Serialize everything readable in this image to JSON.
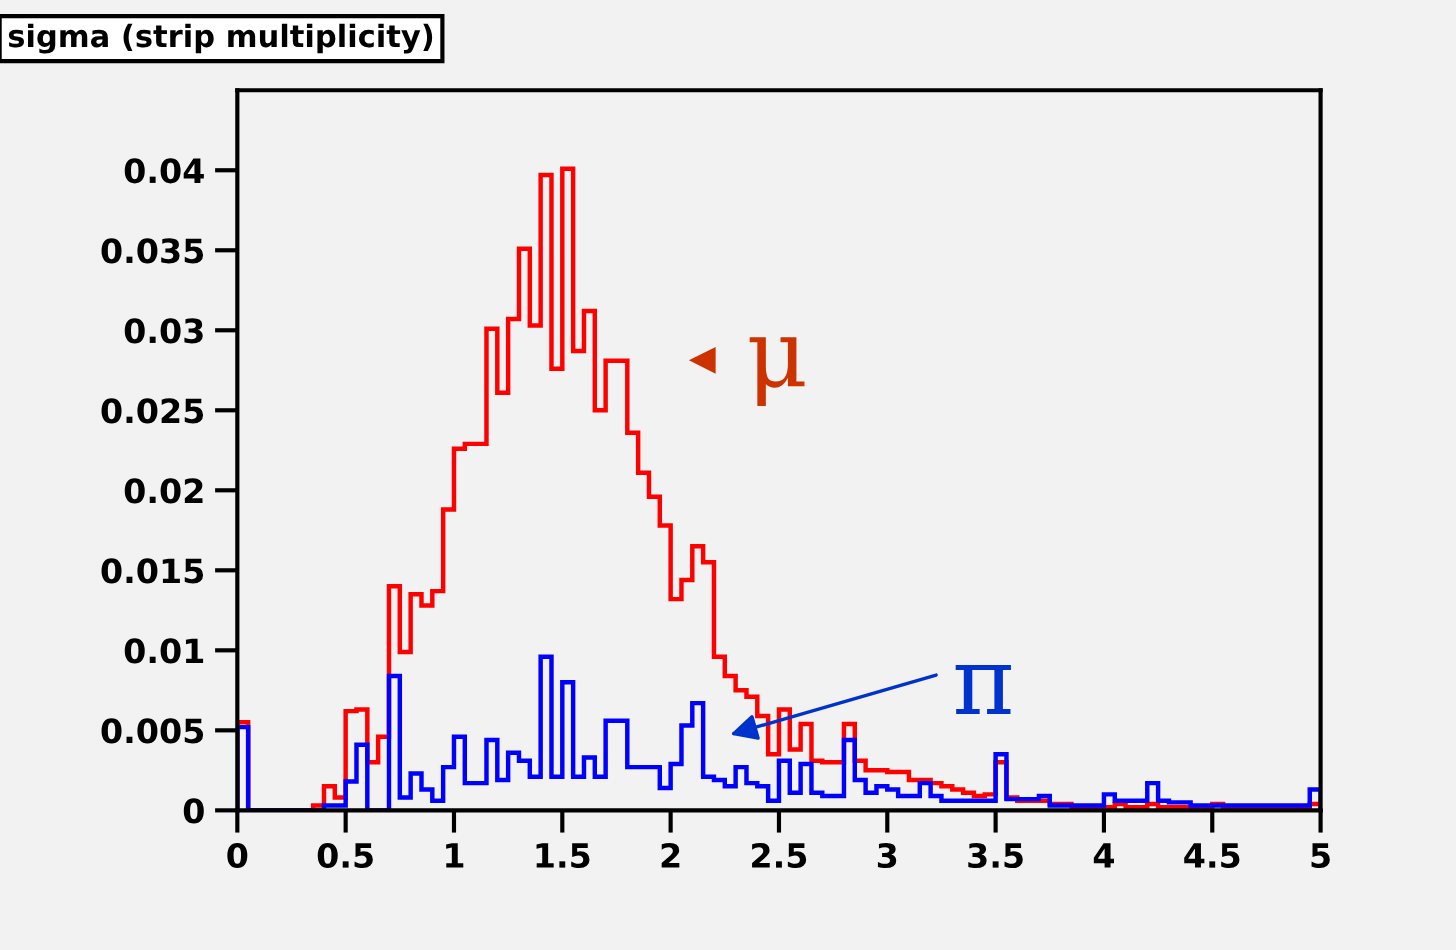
{
  "chart_data": {
    "type": "histogram",
    "title": "sigma (strip multiplicity)",
    "bins": [
      0,
      0.05,
      0.1,
      0.15,
      0.2,
      0.25,
      0.3,
      0.35,
      0.4,
      0.45,
      0.5,
      0.55,
      0.6,
      0.65,
      0.7,
      0.75,
      0.8,
      0.85,
      0.9,
      0.95,
      1,
      1.05,
      1.1,
      1.15,
      1.2,
      1.25,
      1.3,
      1.35,
      1.4,
      1.45,
      1.5,
      1.55,
      1.6,
      1.65,
      1.7,
      1.75,
      1.8,
      1.85,
      1.9,
      1.95,
      2,
      2.05,
      2.1,
      2.15,
      2.2,
      2.25,
      2.3,
      2.35,
      2.4,
      2.45,
      2.5,
      2.55,
      2.6,
      2.65,
      2.7,
      2.75,
      2.8,
      2.85,
      2.9,
      2.95,
      3,
      3.05,
      3.1,
      3.15,
      3.2,
      3.25,
      3.3,
      3.35,
      3.4,
      3.45,
      3.5,
      3.55,
      3.6,
      3.65,
      3.7,
      3.75,
      3.8,
      3.85,
      3.9,
      3.95,
      4,
      4.05,
      4.1,
      4.15,
      4.2,
      4.25,
      4.3,
      4.35,
      4.4,
      4.45,
      4.5,
      4.55,
      4.6,
      4.65,
      4.7,
      4.75,
      4.8,
      4.85,
      4.9,
      4.95,
      5
    ],
    "series": [
      {
        "color": "#ff0000",
        "values": [
          0.0055,
          0,
          0,
          0,
          0,
          0,
          0,
          0.0003,
          0.0015,
          0.0008,
          0.0062,
          0.0063,
          0.003,
          0.0046,
          0.014,
          0.0099,
          0.0135,
          0.0128,
          0.0137,
          0.0188,
          0.0226,
          0.0229,
          0.0229,
          0.0301,
          0.0261,
          0.0307,
          0.0351,
          0.0303,
          0.0397,
          0.0276,
          0.0401,
          0.0287,
          0.0312,
          0.025,
          0.0281,
          0.0281,
          0.0236,
          0.0211,
          0.0196,
          0.0178,
          0.0132,
          0.0144,
          0.0165,
          0.0155,
          0.0096,
          0.0084,
          0.0075,
          0.0071,
          0.0059,
          0.0035,
          0.0063,
          0.0038,
          0.0054,
          0.0031,
          0.003,
          0.003,
          0.0054,
          0.0031,
          0.0025,
          0.0025,
          0.0024,
          0.0024,
          0.0019,
          0.0019,
          0.0017,
          0.0015,
          0.0013,
          0.0011,
          0.0009,
          0.001,
          0.003,
          0.0008,
          0.0006,
          0.0006,
          0.0006,
          0.0004,
          0.0004,
          0.0002,
          0.0002,
          0.0002,
          0.0002,
          0.0004,
          0.0002,
          0.0002,
          0.0004,
          0.0002,
          0.0002,
          0.0002,
          0.0002,
          0.0002,
          0.0004,
          0.0002,
          0.0002,
          0.0002,
          0.0002,
          0.0002,
          0.0002,
          0.0002,
          0.0002,
          0.0004
        ]
      },
      {
        "color": "#0000ff",
        "values": [
          0.0052,
          0,
          0,
          0,
          0,
          0,
          0,
          0,
          0.0003,
          0.0003,
          0.0018,
          0.0041,
          0,
          0,
          0.0084,
          0.0008,
          0.0023,
          0.0013,
          0.0006,
          0.0027,
          0.0046,
          0.0017,
          0.0017,
          0.0044,
          0.0019,
          0.0036,
          0.0031,
          0.0021,
          0.0096,
          0.0021,
          0.008,
          0.0021,
          0.0033,
          0.0021,
          0.0056,
          0.0056,
          0.0027,
          0.0027,
          0.0027,
          0.0014,
          0.0029,
          0.0053,
          0.0067,
          0.0021,
          0.0019,
          0.0015,
          0.0027,
          0.0017,
          0.0015,
          0.0006,
          0.0031,
          0.0011,
          0.0029,
          0.0011,
          0.0009,
          0.0009,
          0.0044,
          0.0019,
          0.0011,
          0.0015,
          0.0013,
          0.0009,
          0.0009,
          0.0017,
          0.0009,
          0.0006,
          0.0006,
          0.0006,
          0.0006,
          0.0006,
          0.0035,
          0.0007,
          0.0007,
          0.0007,
          0.0009,
          0.0003,
          0.0003,
          0.0003,
          0.0003,
          0.0003,
          0.001,
          0.0006,
          0.0006,
          0.0006,
          0.0017,
          0.0006,
          0.0005,
          0.0005,
          0.0003,
          0.0003,
          0.0003,
          0.0003,
          0.0003,
          0.0003,
          0.0003,
          0.0003,
          0.0003,
          0.0003,
          0.0003,
          0.0013
        ]
      }
    ],
    "annotations": [
      "μ",
      "π"
    ],
    "xlim": [
      0,
      5
    ],
    "xticks": [
      0,
      0.5,
      1,
      1.5,
      2,
      2.5,
      3,
      3.5,
      4,
      4.5,
      5
    ],
    "ylim": [
      0,
      0.045
    ],
    "yticks": [
      0,
      0.005,
      0.01,
      0.015,
      0.02,
      0.025,
      0.03,
      0.035,
      0.04
    ],
    "grid": false,
    "legend": false
  }
}
